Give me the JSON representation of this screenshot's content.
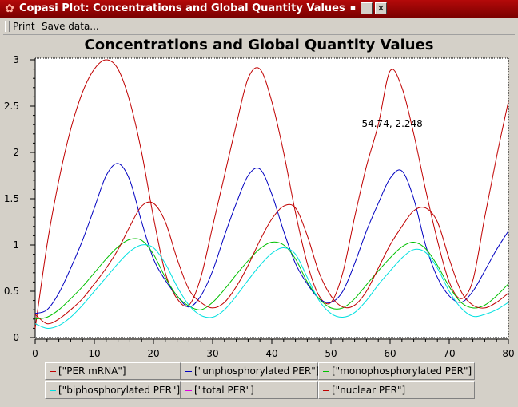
{
  "window": {
    "title": "Copasi Plot: Concentrations and Global Quantity Values",
    "minimize_glyph": "▪",
    "close_glyph": "✕"
  },
  "toolbar": {
    "print_label": "Print",
    "save_label": "Save data..."
  },
  "colors": {
    "titlebar": "#9a0505",
    "per_mrna": "#c00000",
    "unphosphorylated_per": "#0000c0",
    "monophosphorylated_per": "#00c000",
    "biphosphorylated_per": "#00e0e0",
    "total_per": "#e000e0",
    "nuclear_per": "#c00000"
  },
  "chart_data": {
    "type": "line",
    "title": "Concentrations and Global Quantity Values",
    "xlabel": "",
    "ylabel": "",
    "xlim": [
      0,
      80
    ],
    "ylim": [
      0,
      3
    ],
    "x_ticks": [
      "0",
      "10",
      "20",
      "30",
      "40",
      "50",
      "60",
      "70",
      "80"
    ],
    "y_ticks": [
      "0",
      "0.5",
      "1",
      "1.5",
      "2",
      "2.5",
      "3"
    ],
    "grid": false,
    "legend_position": "bottom",
    "cursor_readout": "54.74, 2.248",
    "series": [
      {
        "name": "[\"PER mRNA\"]",
        "color": "#c00000",
        "x": [
          0,
          2,
          4,
          6,
          8,
          10,
          12,
          14,
          16,
          18,
          20,
          22,
          24,
          26,
          28,
          30,
          32,
          34,
          36,
          38,
          40,
          42,
          44,
          46,
          48,
          50,
          52,
          54,
          56,
          58,
          60,
          62,
          64,
          66,
          68,
          70,
          72,
          74,
          76,
          78,
          80
        ],
        "y": [
          0.1,
          1.0,
          1.7,
          2.25,
          2.65,
          2.9,
          3.0,
          2.9,
          2.55,
          2.0,
          1.3,
          0.7,
          0.42,
          0.35,
          0.65,
          1.2,
          1.75,
          2.3,
          2.8,
          2.9,
          2.55,
          2.0,
          1.35,
          0.8,
          0.45,
          0.38,
          0.7,
          1.3,
          1.85,
          2.3,
          2.88,
          2.7,
          2.2,
          1.6,
          1.05,
          0.6,
          0.42,
          0.62,
          1.3,
          1.95,
          2.55
        ]
      },
      {
        "name": "[\"unphosphorylated PER\"]",
        "color": "#0000c0",
        "x": [
          0,
          2,
          4,
          6,
          8,
          10,
          12,
          14,
          16,
          18,
          20,
          22,
          24,
          26,
          28,
          30,
          32,
          34,
          36,
          38,
          40,
          42,
          44,
          46,
          48,
          50,
          52,
          54,
          56,
          58,
          60,
          62,
          64,
          66,
          68,
          70,
          72,
          74,
          76,
          78,
          80
        ],
        "y": [
          0.26,
          0.3,
          0.48,
          0.75,
          1.05,
          1.4,
          1.75,
          1.88,
          1.7,
          1.25,
          0.85,
          0.62,
          0.45,
          0.33,
          0.45,
          0.72,
          1.1,
          1.45,
          1.75,
          1.82,
          1.55,
          1.15,
          0.8,
          0.58,
          0.42,
          0.38,
          0.5,
          0.8,
          1.15,
          1.45,
          1.72,
          1.8,
          1.5,
          1.0,
          0.65,
          0.45,
          0.38,
          0.5,
          0.72,
          0.95,
          1.15
        ]
      },
      {
        "name": "[\"monophosphorylated PER\"]",
        "color": "#00c000",
        "x": [
          0,
          2,
          4,
          6,
          8,
          10,
          12,
          14,
          16,
          18,
          20,
          22,
          24,
          26,
          28,
          30,
          32,
          34,
          36,
          38,
          40,
          42,
          44,
          46,
          48,
          50,
          52,
          54,
          56,
          58,
          60,
          62,
          64,
          66,
          68,
          70,
          72,
          74,
          76,
          78,
          80
        ],
        "y": [
          0.2,
          0.22,
          0.3,
          0.42,
          0.55,
          0.7,
          0.85,
          0.98,
          1.06,
          1.05,
          0.9,
          0.65,
          0.45,
          0.34,
          0.3,
          0.38,
          0.52,
          0.68,
          0.83,
          0.96,
          1.03,
          1.0,
          0.85,
          0.6,
          0.42,
          0.32,
          0.32,
          0.42,
          0.57,
          0.72,
          0.86,
          0.98,
          1.03,
          0.96,
          0.78,
          0.55,
          0.38,
          0.32,
          0.35,
          0.45,
          0.58
        ]
      },
      {
        "name": "[\"biphosphorylated PER\"]",
        "color": "#00e0e0",
        "x": [
          0,
          2,
          4,
          6,
          8,
          10,
          12,
          14,
          16,
          18,
          20,
          22,
          24,
          26,
          28,
          30,
          32,
          34,
          36,
          38,
          40,
          42,
          44,
          46,
          48,
          50,
          52,
          54,
          56,
          58,
          60,
          62,
          64,
          66,
          68,
          70,
          72,
          74,
          76,
          78,
          80
        ],
        "y": [
          0.15,
          0.1,
          0.13,
          0.22,
          0.35,
          0.5,
          0.65,
          0.8,
          0.93,
          1.0,
          0.97,
          0.8,
          0.55,
          0.35,
          0.24,
          0.22,
          0.3,
          0.45,
          0.62,
          0.78,
          0.91,
          0.97,
          0.9,
          0.65,
          0.4,
          0.26,
          0.22,
          0.27,
          0.4,
          0.57,
          0.72,
          0.86,
          0.95,
          0.92,
          0.75,
          0.5,
          0.32,
          0.23,
          0.25,
          0.3,
          0.38
        ]
      },
      {
        "name": "[\"total PER\"]",
        "color": "#e000e0",
        "x": [],
        "y": []
      },
      {
        "name": "[\"nuclear PER\"]",
        "color": "#c00000",
        "x": [
          0,
          2,
          4,
          6,
          8,
          10,
          12,
          14,
          16,
          18,
          20,
          22,
          24,
          26,
          28,
          30,
          32,
          34,
          36,
          38,
          40,
          42,
          44,
          46,
          48,
          50,
          52,
          54,
          56,
          58,
          60,
          62,
          64,
          66,
          68,
          70,
          72,
          74,
          76,
          78,
          80
        ],
        "y": [
          0.25,
          0.15,
          0.2,
          0.3,
          0.42,
          0.58,
          0.75,
          0.95,
          1.2,
          1.42,
          1.45,
          1.25,
          0.85,
          0.52,
          0.38,
          0.32,
          0.38,
          0.55,
          0.78,
          1.05,
          1.28,
          1.42,
          1.4,
          1.1,
          0.7,
          0.45,
          0.33,
          0.35,
          0.5,
          0.75,
          1.0,
          1.2,
          1.37,
          1.4,
          1.25,
          0.85,
          0.5,
          0.35,
          0.32,
          0.38,
          0.48
        ]
      }
    ]
  }
}
